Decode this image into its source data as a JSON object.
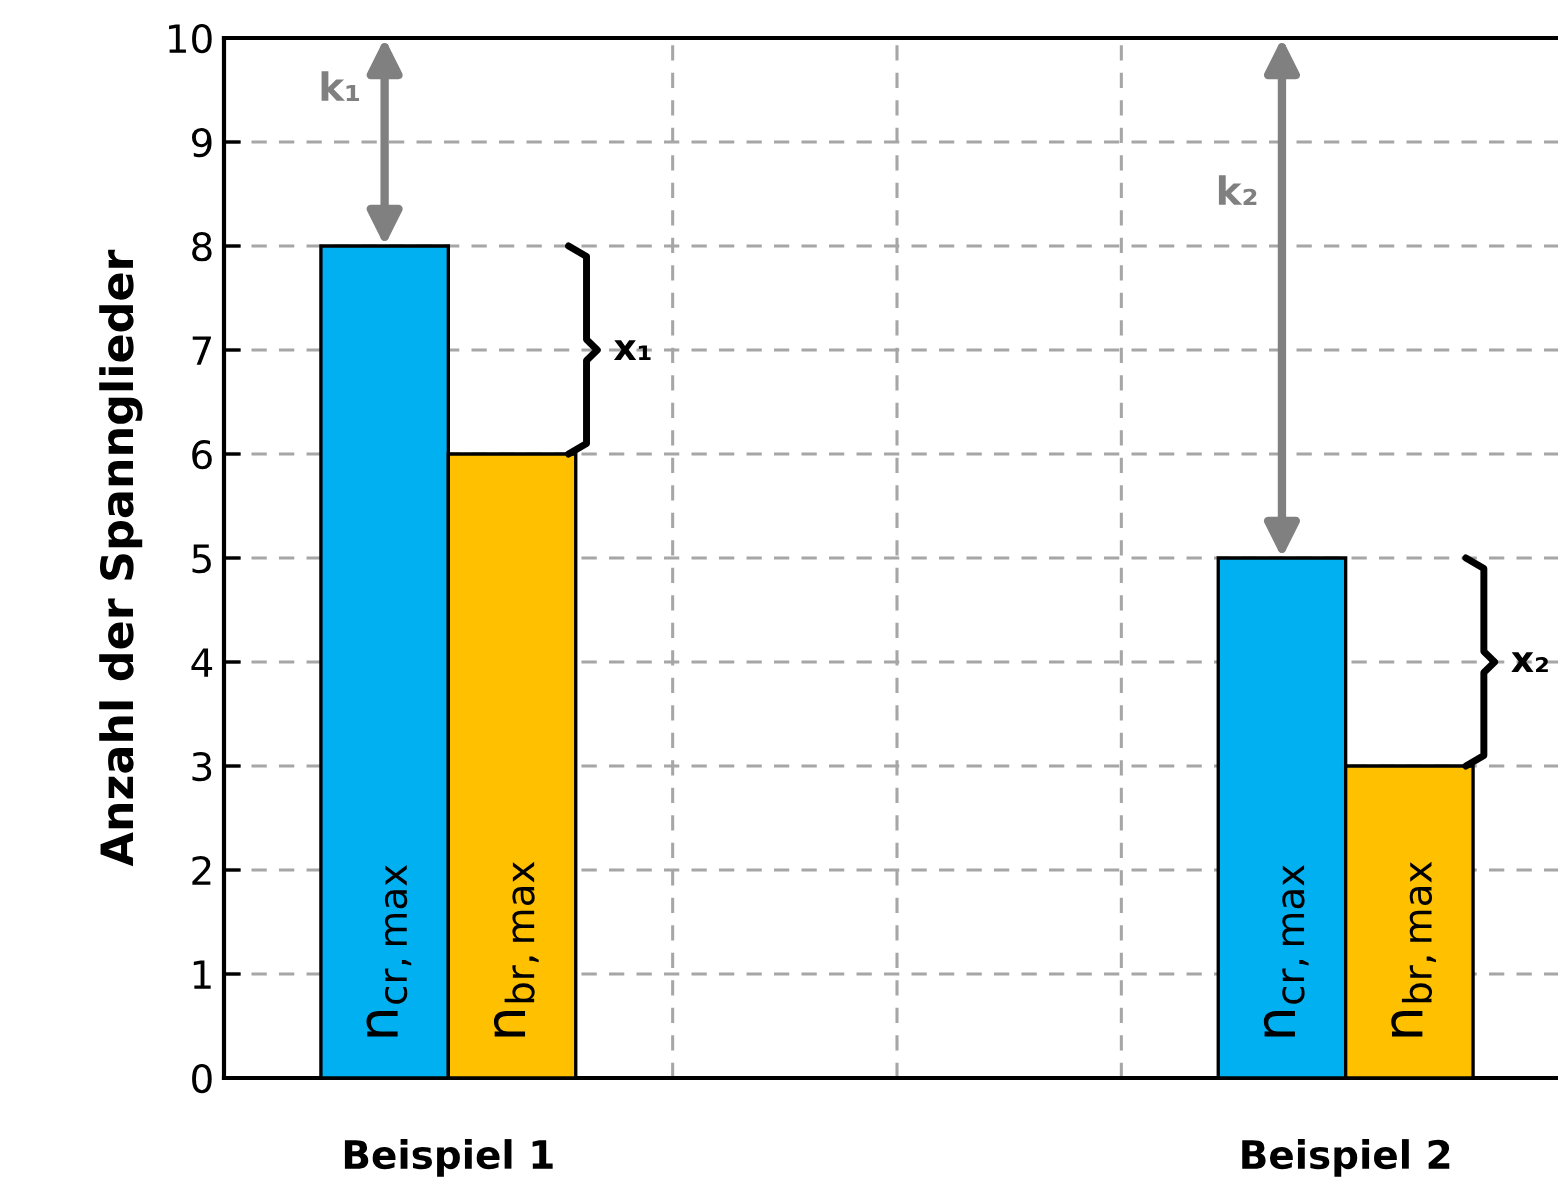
{
  "chart_data": {
    "type": "bar",
    "ylabel": "Anzahl der Spannglieder",
    "categories": [
      "Beispiel 1",
      "Beispiel 2"
    ],
    "series": [
      {
        "name": "n$_{cr,max}$",
        "color": "#00b0f0",
        "values": [
          8,
          5
        ]
      },
      {
        "name": "n$_{br,max}$",
        "color": "#ffc000",
        "values": [
          6,
          3
        ]
      }
    ],
    "ylim": [
      0,
      10
    ],
    "yticks": [
      0,
      1,
      2,
      3,
      4,
      5,
      6,
      7,
      8,
      9,
      10
    ],
    "grid": true,
    "annotations": [
      "k₁",
      "x₁",
      "k₂",
      "x₂"
    ]
  }
}
